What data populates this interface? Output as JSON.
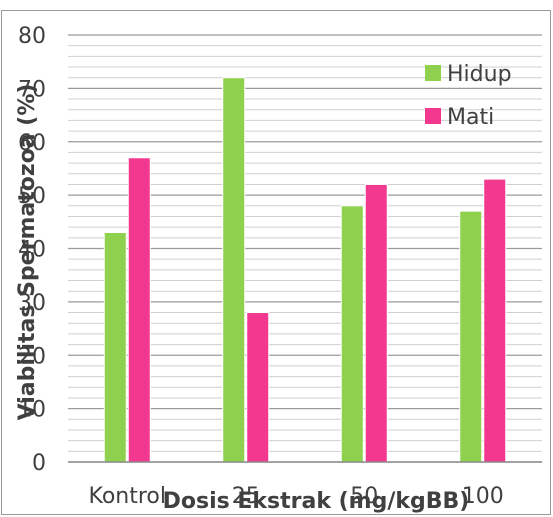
{
  "chart_data": {
    "type": "bar",
    "categories": [
      "Kontrol",
      "25",
      "50",
      "100"
    ],
    "series": [
      {
        "name": "Hidup",
        "values": [
          43,
          72,
          48,
          47
        ],
        "color": "#8fd14f"
      },
      {
        "name": "Mati",
        "values": [
          57,
          28,
          52,
          53
        ],
        "color": "#f2388f"
      }
    ],
    "ylim": [
      0,
      80
    ],
    "yticks": [
      0,
      10,
      20,
      30,
      40,
      50,
      60,
      70,
      80
    ],
    "xlabel": "Dosis Ekstrak (mg/kgBB)",
    "ylabel": "Viabilitas Spermatozoa (%)",
    "legend_position": "top-right",
    "grid": true
  }
}
